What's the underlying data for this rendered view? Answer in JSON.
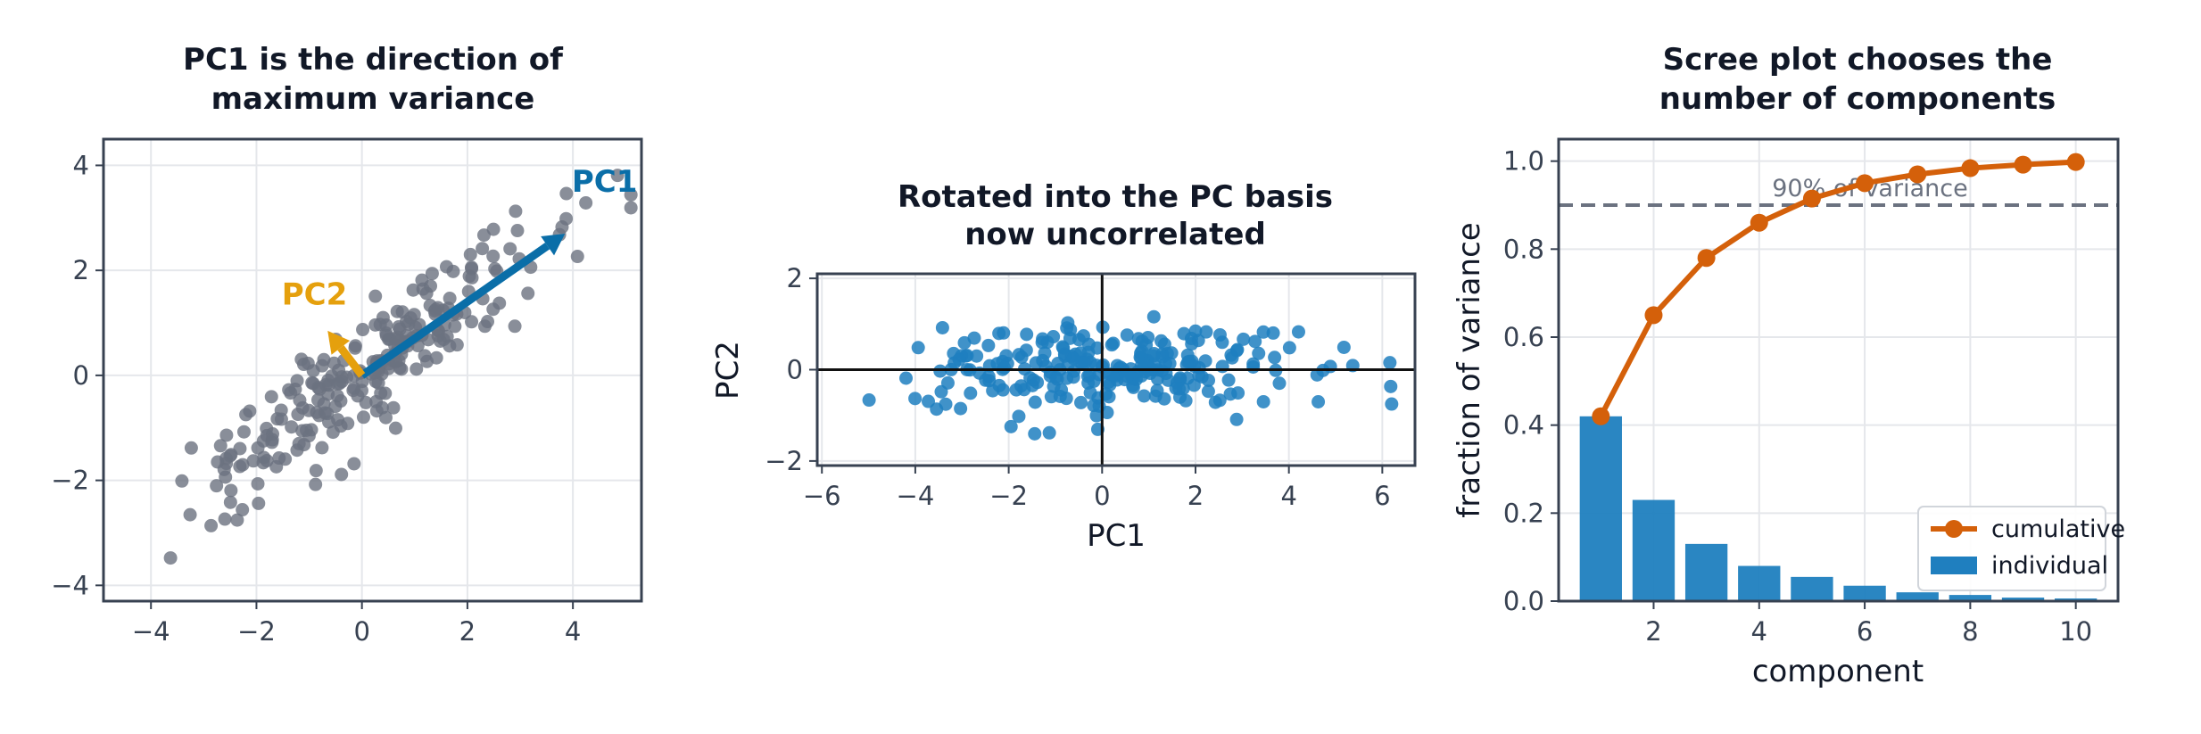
{
  "chart_data": [
    {
      "type": "scatter",
      "title_lines": [
        "PC1 is the direction of",
        "maximum variance"
      ],
      "xlim": [
        -4.9,
        5.3
      ],
      "ylim": [
        -4.3,
        4.5
      ],
      "xticks": [
        -4,
        -2,
        0,
        2,
        4
      ],
      "yticks": [
        -4,
        -2,
        0,
        2,
        4
      ],
      "tick_labels_x": [
        "−4",
        "−2",
        "0",
        "2",
        "4"
      ],
      "tick_labels_y": [
        "−4",
        "−2",
        "0",
        "2",
        "4"
      ],
      "xlabel": "",
      "ylabel": "",
      "grid": true,
      "point_color": "#6b7280",
      "points": {
        "seed": 7,
        "count": 250,
        "correlation_along": [
          0.8,
          0.6
        ],
        "major_sd": 2.0,
        "minor_sd": 0.45
      },
      "vectors": [
        {
          "name": "PC1",
          "label": "PC1",
          "from": [
            0,
            0
          ],
          "to": [
            3.85,
            2.7
          ],
          "color": "#0a6ea8",
          "label_at": [
            4.6,
            3.5
          ]
        },
        {
          "name": "PC2",
          "label": "PC2",
          "from": [
            0,
            0
          ],
          "to": [
            -0.65,
            0.85
          ],
          "color": "#e5a00d",
          "label_at": [
            -0.9,
            1.35
          ]
        }
      ]
    },
    {
      "type": "scatter",
      "title_lines": [
        "Rotated into the PC basis",
        "now uncorrelated"
      ],
      "xlim": [
        -6.1,
        6.7
      ],
      "ylim": [
        -2.1,
        2.1
      ],
      "xticks": [
        -6,
        -4,
        -2,
        0,
        2,
        4,
        6
      ],
      "yticks": [
        -2,
        0,
        2
      ],
      "tick_labels_x": [
        "−6",
        "−4",
        "−2",
        "0",
        "2",
        "4",
        "6"
      ],
      "tick_labels_y": [
        "−2",
        "0",
        "2"
      ],
      "xlabel": "PC1",
      "ylabel": "PC2",
      "grid": true,
      "point_color": "#1f7fbf",
      "zero_lines": true
    },
    {
      "type": "bar+line",
      "title_lines": [
        "Scree plot chooses the",
        "number of components"
      ],
      "xlim": [
        0.2,
        10.8
      ],
      "ylim": [
        0,
        1.05
      ],
      "xticks": [
        2,
        4,
        6,
        8,
        10
      ],
      "yticks": [
        0.0,
        0.2,
        0.4,
        0.6,
        0.8,
        1.0
      ],
      "tick_labels_x": [
        "2",
        "4",
        "6",
        "8",
        "10"
      ],
      "tick_labels_y": [
        "0.0",
        "0.2",
        "0.4",
        "0.6",
        "0.8",
        "1.0"
      ],
      "xlabel": "component",
      "ylabel": "fraction of variance",
      "grid": true,
      "components": [
        1,
        2,
        3,
        4,
        5,
        6,
        7,
        8,
        9,
        10
      ],
      "series": [
        {
          "name": "individual",
          "type": "bar",
          "color": "#1f7fbf",
          "values": [
            0.42,
            0.23,
            0.13,
            0.08,
            0.055,
            0.035,
            0.02,
            0.014,
            0.008,
            0.006
          ]
        },
        {
          "name": "cumulative",
          "type": "line",
          "color": "#d4600a",
          "values": [
            0.42,
            0.65,
            0.78,
            0.86,
            0.915,
            0.95,
            0.97,
            0.984,
            0.992,
            0.998
          ]
        }
      ],
      "threshold": {
        "value": 0.9,
        "label": "90% of variance",
        "color": "#6b7280"
      },
      "legend": {
        "placement": "lower-right",
        "entries": [
          "cumulative",
          "individual"
        ]
      }
    }
  ]
}
